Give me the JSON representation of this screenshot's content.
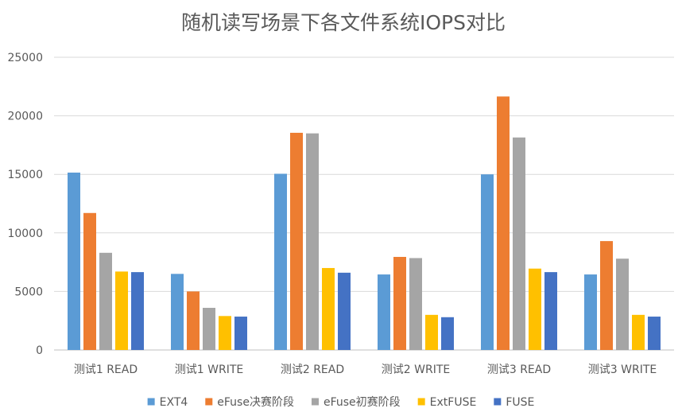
{
  "chart_data": {
    "type": "bar",
    "title": "随机读写场景下各文件系统IOPS对比",
    "xlabel": "",
    "ylabel": "",
    "ylim": [
      0,
      25000
    ],
    "yticks": [
      0,
      5000,
      10000,
      15000,
      20000,
      25000
    ],
    "grid": true,
    "legend_position": "bottom",
    "categories": [
      "测试1 READ",
      "测试1 WRITE",
      "测试2 READ",
      "测试2 WRITE",
      "测试3 READ",
      "测试3 WRITE"
    ],
    "series": [
      {
        "name": "EXT4",
        "color": "#5B9BD5",
        "values": [
          15150,
          6500,
          15050,
          6450,
          15000,
          6450
        ]
      },
      {
        "name": "eFuse决赛阶段",
        "color": "#ED7D31",
        "values": [
          11700,
          5000,
          18550,
          7950,
          21650,
          9300
        ]
      },
      {
        "name": "eFuse初赛阶段",
        "color": "#A5A5A5",
        "values": [
          8300,
          3600,
          18500,
          7850,
          18150,
          7800
        ]
      },
      {
        "name": "ExtFUSE",
        "color": "#FFC000",
        "values": [
          6700,
          2900,
          7000,
          3000,
          6950,
          3000
        ]
      },
      {
        "name": "FUSE",
        "color": "#4472C4",
        "values": [
          6650,
          2850,
          6600,
          2800,
          6650,
          2850
        ]
      }
    ]
  }
}
